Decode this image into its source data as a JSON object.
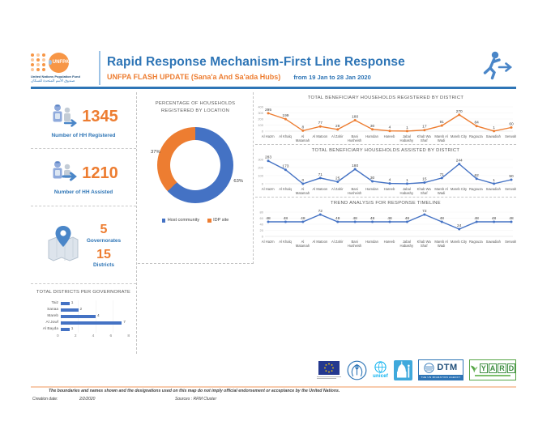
{
  "header": {
    "title": "Rapid Response Mechanism-First Line Response",
    "subtitle": "UNFPA FLASH UPDATE (Sana'a And Sa'ada Hubs)",
    "date_range": "from 19 Jan to 28 Jan 2020",
    "logo_org": "UNFPA",
    "logo_caption_en": "United Nations Population Fund",
    "logo_caption_ar": "صندوق الأمم المتحدة للسكان"
  },
  "stats": [
    {
      "value": "1345",
      "label": "Number of HH Registered"
    },
    {
      "value": "1210",
      "label": "Number of HH Assisted"
    }
  ],
  "geo": {
    "governorates_value": "5",
    "governorates_label": "Governorates",
    "districts_value": "15",
    "districts_label": "Districts"
  },
  "chart_data": [
    {
      "id": "location_donut",
      "type": "pie",
      "title": "PERCENTAGE OF HOUSEHOLDS REGISTERED BY LOCATION",
      "slices": [
        {
          "label": "Host community",
          "value": 63,
          "pct": "63%",
          "color": "#4472C4"
        },
        {
          "label": "IDP site",
          "value": 37,
          "pct": "37%",
          "color": "#ED7D31"
        }
      ],
      "legend_position": "bottom"
    },
    {
      "id": "registered_line",
      "type": "line",
      "title": "TOTAL BENEFICIARY HOUSEHOLDS REGISTERED BY DISTRICT",
      "color": "#ED7D31",
      "categories": [
        "Al Hazm",
        "Al Khalq",
        "Al Matamah",
        "Al Matoon",
        "Al Zahir",
        "Bani Husheish",
        "Hamdan",
        "Hareeb",
        "Jabal Habashy",
        "Khab Wa Shaf",
        "Mareb Al Wadi",
        "Mareb City",
        "Ragouza",
        "Sawadiah",
        "Serwah"
      ],
      "values": [
        295,
        199,
        8,
        77,
        28,
        180,
        30,
        4,
        1,
        17,
        91,
        270,
        84,
        1,
        60
      ],
      "ylim": [
        0,
        400
      ],
      "yticks": [
        0,
        100,
        200,
        300,
        400
      ]
    },
    {
      "id": "assisted_line",
      "type": "line",
      "title": "TOTAL BENEFICIARY HOUSEHOLDS ASSISTED BY DISTRICT",
      "color": "#4472C4",
      "categories": [
        "Al Hazm",
        "Al Khalq",
        "Al Matamah",
        "Al Matoon",
        "Al Zahir",
        "Bani Husheish",
        "Hamdan",
        "Hareeb",
        "Jabal Habashy",
        "Khab Wa Shaf",
        "Mareb Al Wadi",
        "Mareb City",
        "Ragouza",
        "Sawadiah",
        "Serwah"
      ],
      "values": [
        283,
        173,
        0,
        71,
        25,
        180,
        30,
        4,
        1,
        15,
        71,
        244,
        62,
        1,
        50
      ],
      "ylim": [
        0,
        300
      ],
      "yticks": [
        0,
        100,
        200,
        300
      ]
    },
    {
      "id": "trend_line",
      "type": "line",
      "title": "TREND ANALYSIS FOR RESPONSE TIMELINE",
      "color": "#4472C4",
      "categories": [
        "Al Hazm",
        "Al Khalq",
        "Al Matamah",
        "Al Matoon",
        "Al Zahir",
        "Bani Husheish",
        "Hamdan",
        "Hareeb",
        "Jabal Habashy",
        "Khab Wa Shaf",
        "Mareb Al Wadi",
        "Mareb City",
        "Ragouza",
        "Sawadiah",
        "Serwah"
      ],
      "values": [
        48,
        48,
        48,
        72,
        48,
        48,
        48,
        48,
        48,
        72,
        48,
        24,
        48,
        48,
        48
      ],
      "ylim": [
        0,
        80
      ],
      "yticks": [
        0,
        20,
        40,
        60,
        80
      ]
    },
    {
      "id": "districts_bar",
      "type": "bar",
      "title": "TOTAL DISTRICTS PER GOVERNORATE",
      "color": "#4472C4",
      "categories": [
        "Taiz",
        "Sanaa",
        "Mareb",
        "Al Jowf",
        "Al Bayda"
      ],
      "values": [
        1,
        2,
        4,
        7,
        1
      ],
      "xlim": [
        0,
        8
      ],
      "xticks": [
        0,
        2,
        4,
        6,
        8
      ]
    }
  ],
  "footer": {
    "logos": [
      {
        "name": "eu-flag"
      },
      {
        "name": "wfp"
      },
      {
        "name": "unicef",
        "label": "unicef"
      },
      {
        "name": "mosque"
      },
      {
        "name": "dtm",
        "label": "DTM",
        "sublabel": "THE UN MIGRATION AGENCY"
      },
      {
        "name": "yard",
        "label": "YARD"
      }
    ],
    "disclaimer": "The boundaries and names shown and the designations used on this map do not imply official endorsement or acceptance by the United Nations.",
    "creation_date_label": "Creation date:",
    "creation_date": "2/2/2020",
    "sources": "Sources : RRM Cluster"
  },
  "colors": {
    "accent_blue": "#2E75B6",
    "accent_orange": "#ED7D31",
    "chart_blue": "#4472C4"
  }
}
